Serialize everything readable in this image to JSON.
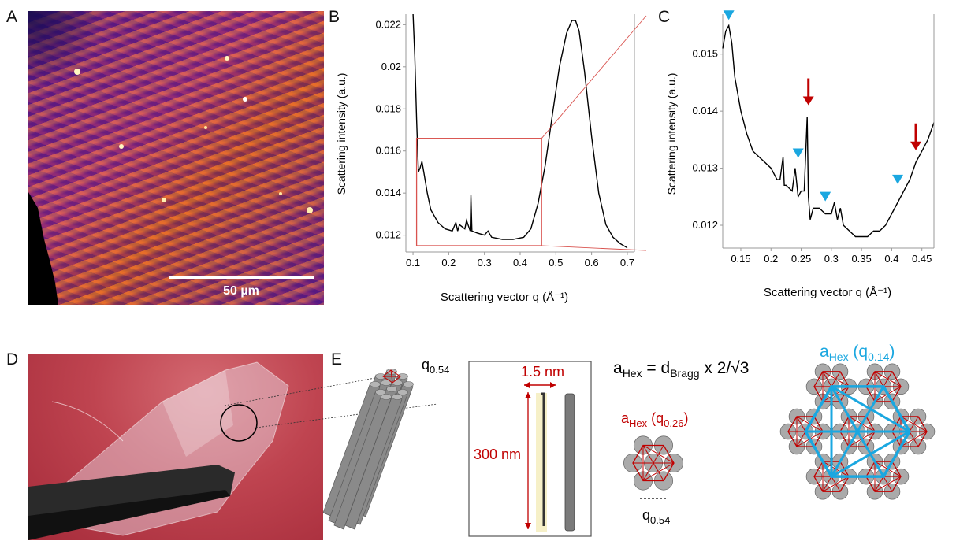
{
  "panels": {
    "A": {
      "letter": "A",
      "scalebar_label": "50 µm"
    },
    "B": {
      "letter": "B"
    },
    "C": {
      "letter": "C"
    },
    "D": {
      "letter": "D"
    },
    "E": {
      "letter": "E"
    }
  },
  "chart_data": [
    {
      "panel": "B",
      "type": "line",
      "xlabel": "Scattering vector q  (Å⁻¹)",
      "ylabel": "Scattering intensity (a.u.)",
      "xlim": [
        0.08,
        0.72
      ],
      "ylim": [
        0.0112,
        0.0225
      ],
      "xticks": [
        "0.1",
        "0.2",
        "0.3",
        "0.4",
        "0.5",
        "0.6",
        "0.7"
      ],
      "yticks": [
        "0.012",
        "0.014",
        "0.016",
        "0.018",
        "0.02",
        "0.022"
      ],
      "zoom_box": {
        "x": [
          0.11,
          0.46
        ],
        "y": [
          0.0115,
          0.0166
        ]
      },
      "x": [
        0.1,
        0.105,
        0.11,
        0.115,
        0.12,
        0.125,
        0.13,
        0.14,
        0.15,
        0.17,
        0.19,
        0.21,
        0.22,
        0.225,
        0.23,
        0.245,
        0.25,
        0.26,
        0.262,
        0.265,
        0.28,
        0.3,
        0.31,
        0.32,
        0.35,
        0.38,
        0.41,
        0.43,
        0.45,
        0.47,
        0.49,
        0.51,
        0.53,
        0.545,
        0.555,
        0.565,
        0.58,
        0.6,
        0.62,
        0.64,
        0.66,
        0.68,
        0.7
      ],
      "values": [
        0.0225,
        0.0205,
        0.0175,
        0.015,
        0.0152,
        0.0155,
        0.015,
        0.014,
        0.0132,
        0.0126,
        0.0123,
        0.0122,
        0.0126,
        0.0122,
        0.0125,
        0.0123,
        0.0127,
        0.0122,
        0.0139,
        0.0122,
        0.0121,
        0.012,
        0.0122,
        0.0119,
        0.0118,
        0.0118,
        0.0119,
        0.0123,
        0.0135,
        0.0153,
        0.0177,
        0.02,
        0.0216,
        0.0222,
        0.0222,
        0.0217,
        0.0198,
        0.0167,
        0.014,
        0.0125,
        0.0119,
        0.0116,
        0.0114
      ]
    },
    {
      "panel": "C",
      "type": "line",
      "xlabel": "Scattering vector q  (Å⁻¹)",
      "ylabel": "Scattering intensity (a.u.)",
      "xlim": [
        0.12,
        0.47
      ],
      "ylim": [
        0.0116,
        0.0157
      ],
      "xticks": [
        "0.15",
        "0.2",
        "0.25",
        "0.3",
        "0.35",
        "0.4",
        "0.45"
      ],
      "yticks": [
        "0.012",
        "0.013",
        "0.014",
        "0.015"
      ],
      "x": [
        0.12,
        0.125,
        0.13,
        0.135,
        0.14,
        0.15,
        0.16,
        0.17,
        0.18,
        0.19,
        0.2,
        0.21,
        0.215,
        0.22,
        0.222,
        0.225,
        0.235,
        0.24,
        0.245,
        0.25,
        0.255,
        0.26,
        0.262,
        0.265,
        0.27,
        0.28,
        0.29,
        0.3,
        0.305,
        0.31,
        0.315,
        0.32,
        0.33,
        0.34,
        0.35,
        0.36,
        0.37,
        0.38,
        0.39,
        0.4,
        0.41,
        0.42,
        0.43,
        0.44,
        0.45,
        0.46,
        0.47
      ],
      "values": [
        0.0151,
        0.0154,
        0.0155,
        0.0152,
        0.0146,
        0.014,
        0.0136,
        0.0133,
        0.0132,
        0.0131,
        0.013,
        0.0128,
        0.0128,
        0.0132,
        0.0127,
        0.0127,
        0.0126,
        0.013,
        0.0125,
        0.0126,
        0.0126,
        0.0139,
        0.0125,
        0.0121,
        0.0123,
        0.0123,
        0.0122,
        0.0122,
        0.0124,
        0.0121,
        0.0123,
        0.012,
        0.0119,
        0.0118,
        0.0118,
        0.0118,
        0.0119,
        0.0119,
        0.012,
        0.0122,
        0.0124,
        0.0126,
        0.0128,
        0.0131,
        0.0133,
        0.0135,
        0.0138
      ],
      "annotations": {
        "blue_triangles_q": [
          0.13,
          0.245,
          0.29,
          0.41
        ],
        "red_arrows_q": [
          0.262,
          0.44
        ]
      }
    }
  ],
  "schematic": {
    "E_label_q": "q",
    "E_label_q_sub": "0.54",
    "fiber_width": "1.5 nm",
    "fiber_length": "300 nm",
    "formula_a": "a",
    "formula_a_sub": "Hex",
    "formula_eq": " = d",
    "formula_d_sub": "Bragg",
    "formula_tail": " x 2/√3",
    "small_lattice_a": "a",
    "small_lattice_sub": "Hex",
    "small_lattice_q": " (q",
    "small_lattice_q_sub": "0.26",
    "small_lattice_close": ")",
    "small_lattice_bottom_q": "q",
    "small_lattice_bottom_sub": "0.54",
    "big_lattice_a": "a",
    "big_lattice_sub": "Hex",
    "big_lattice_q": " (q",
    "big_lattice_q_sub": "0.14",
    "big_lattice_close": ")"
  },
  "colors": {
    "red": "#c00000",
    "blue": "#1aa7e0",
    "grey_rod": "#8c8c8c",
    "box_red": "#d9534f"
  }
}
